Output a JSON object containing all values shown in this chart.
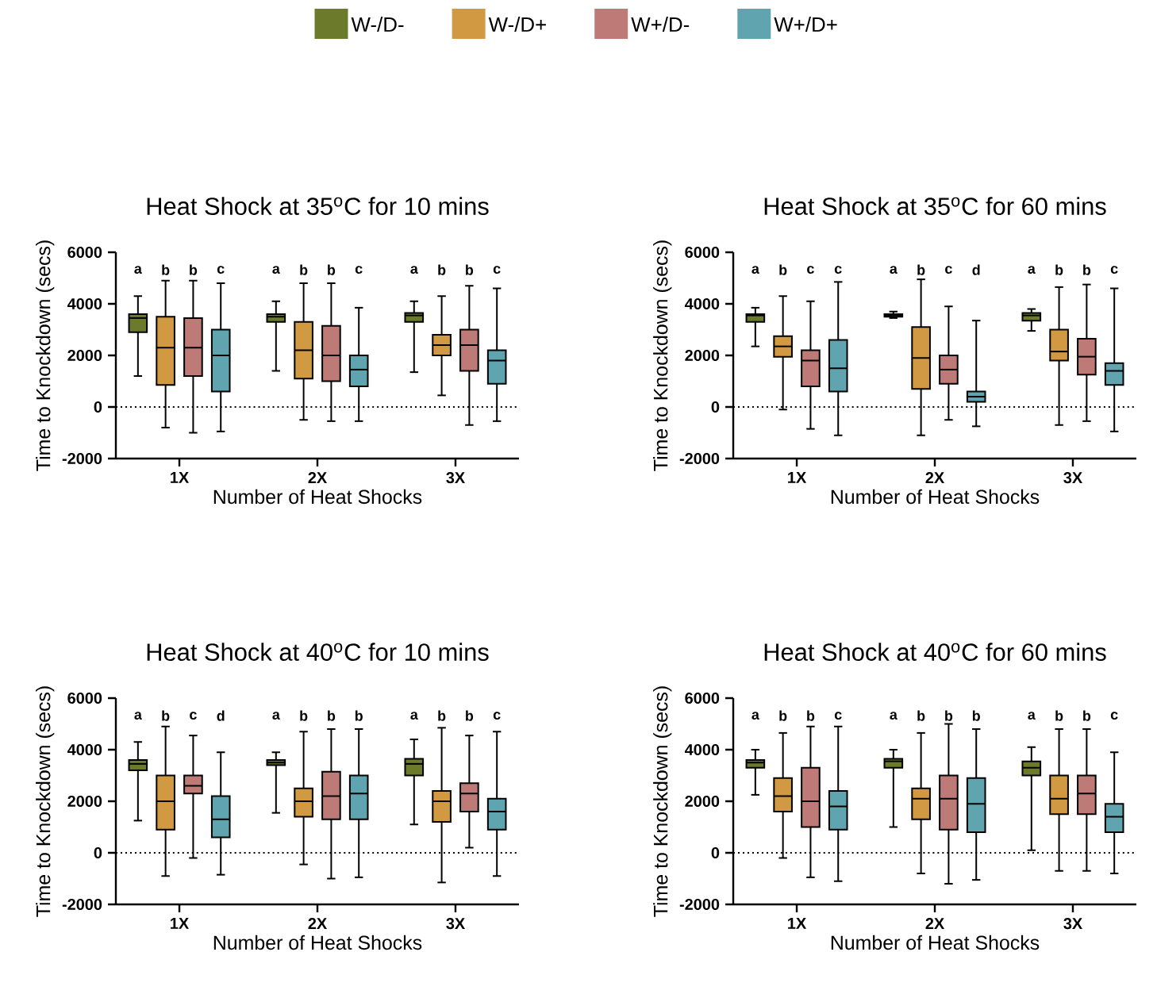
{
  "chart_data": [
    {
      "type": "box",
      "title": "Heat Shock at 35$^{o}$C for 10 mins",
      "xlabel": "Number of Heat Shocks",
      "ylabel": "Time to Knockdown (secs)",
      "categories": [
        "1X",
        "2X",
        "3X"
      ],
      "ylim": [
        -2000,
        6000
      ],
      "yticks": [
        -2000,
        0,
        2000,
        4000,
        6000
      ],
      "legend": "top",
      "series": [
        {
          "name": "W-/D-",
          "color": "#6b7a2b",
          "boxes": [
            {
              "low": 1200,
              "q1": 2900,
              "median": 3450,
              "q3": 3600,
              "high": 4300
            },
            {
              "low": 1400,
              "q1": 3300,
              "median": 3500,
              "q3": 3600,
              "high": 4100
            },
            {
              "low": 1350,
              "q1": 3300,
              "median": 3550,
              "q3": 3650,
              "high": 4100
            }
          ]
        },
        {
          "name": "W-/D+",
          "color": "#d19a42",
          "boxes": [
            {
              "low": -800,
              "q1": 850,
              "median": 2300,
              "q3": 3500,
              "high": 4900
            },
            {
              "low": -500,
              "q1": 1100,
              "median": 2200,
              "q3": 3300,
              "high": 4800
            },
            {
              "low": 450,
              "q1": 2000,
              "median": 2400,
              "q3": 2800,
              "high": 4300
            }
          ]
        },
        {
          "name": "W+/D-",
          "color": "#bd7a77",
          "boxes": [
            {
              "low": -1000,
              "q1": 1200,
              "median": 2300,
              "q3": 3450,
              "high": 4900
            },
            {
              "low": -550,
              "q1": 1000,
              "median": 2000,
              "q3": 3150,
              "high": 4800
            },
            {
              "low": -700,
              "q1": 1400,
              "median": 2400,
              "q3": 3000,
              "high": 4700
            }
          ]
        },
        {
          "name": "W+/D+",
          "color": "#5fa4ae",
          "boxes": [
            {
              "low": -950,
              "q1": 600,
              "median": 2000,
              "q3": 3000,
              "high": 4800
            },
            {
              "low": -550,
              "q1": 800,
              "median": 1450,
              "q3": 2000,
              "high": 3850
            },
            {
              "low": -550,
              "q1": 900,
              "median": 1800,
              "q3": 2200,
              "high": 4600
            }
          ]
        }
      ],
      "ref_lines": [
        {
          "axis": "y",
          "value": 0,
          "line_style": "dotted"
        }
      ],
      "annotations": [
        "a",
        "b",
        "b",
        "c",
        "a",
        "b",
        "b",
        "c",
        "a",
        "b",
        "b",
        "c"
      ]
    },
    {
      "type": "box",
      "title": "Heat Shock at 35$^{o}$C for 60 mins",
      "xlabel": "Number of Heat Shocks",
      "ylabel": "Time to Knockdown (secs)",
      "categories": [
        "1X",
        "2X",
        "3X"
      ],
      "ylim": [
        -2000,
        6000
      ],
      "yticks": [
        -2000,
        0,
        2000,
        4000,
        6000
      ],
      "series": [
        {
          "color": "#6b7a2b",
          "boxes": [
            {
              "low": 2350,
              "q1": 3300,
              "median": 3550,
              "q3": 3600,
              "high": 3850
            },
            {
              "low": 3450,
              "q1": 3500,
              "median": 3550,
              "q3": 3600,
              "high": 3700
            },
            {
              "low": 2950,
              "q1": 3350,
              "median": 3550,
              "q3": 3650,
              "high": 3800
            }
          ]
        },
        {
          "color": "#d19a42",
          "boxes": [
            {
              "low": -100,
              "q1": 1950,
              "median": 2350,
              "q3": 2750,
              "high": 4300
            },
            {
              "low": -1100,
              "q1": 700,
              "median": 1900,
              "q3": 3100,
              "high": 4950
            },
            {
              "low": -700,
              "q1": 1800,
              "median": 2150,
              "q3": 3000,
              "high": 4650
            }
          ]
        },
        {
          "color": "#bd7a77",
          "boxes": [
            {
              "low": -850,
              "q1": 800,
              "median": 1800,
              "q3": 2200,
              "high": 4100
            },
            {
              "low": -500,
              "q1": 900,
              "median": 1450,
              "q3": 2000,
              "high": 3900
            },
            {
              "low": -550,
              "q1": 1250,
              "median": 1950,
              "q3": 2650,
              "high": 4750
            }
          ]
        },
        {
          "color": "#5fa4ae",
          "boxes": [
            {
              "low": -1100,
              "q1": 600,
              "median": 1500,
              "q3": 2600,
              "high": 4850
            },
            {
              "low": -750,
              "q1": 200,
              "median": 400,
              "q3": 600,
              "high": 3350
            },
            {
              "low": -950,
              "q1": 850,
              "median": 1400,
              "q3": 1700,
              "high": 4600
            }
          ]
        }
      ],
      "ref_lines": [
        {
          "axis": "y",
          "value": 0,
          "line_style": "dotted"
        }
      ],
      "annotations": [
        "a",
        "b",
        "c",
        "c",
        "a",
        "b",
        "c",
        "d",
        "a",
        "b",
        "b",
        "c"
      ]
    },
    {
      "type": "box",
      "title": "Heat Shock at 40$^{o}$C for 10 mins",
      "xlabel": "Number of Heat Shocks",
      "ylabel": "Time to Knockdown (secs)",
      "categories": [
        "1X",
        "2X",
        "3X"
      ],
      "ylim": [
        -2000,
        6000
      ],
      "yticks": [
        -2000,
        0,
        2000,
        4000,
        6000
      ],
      "series": [
        {
          "color": "#6b7a2b",
          "boxes": [
            {
              "low": 1250,
              "q1": 3200,
              "median": 3450,
              "q3": 3600,
              "high": 4300
            },
            {
              "low": 1550,
              "q1": 3400,
              "median": 3500,
              "q3": 3600,
              "high": 3900
            },
            {
              "low": 1100,
              "q1": 3000,
              "median": 3450,
              "q3": 3650,
              "high": 4400
            }
          ]
        },
        {
          "color": "#d19a42",
          "boxes": [
            {
              "low": -900,
              "q1": 900,
              "median": 2000,
              "q3": 3000,
              "high": 4900
            },
            {
              "low": -450,
              "q1": 1400,
              "median": 2000,
              "q3": 2500,
              "high": 4700
            },
            {
              "low": -1150,
              "q1": 1200,
              "median": 2000,
              "q3": 2400,
              "high": 4850
            }
          ]
        },
        {
          "color": "#bd7a77",
          "boxes": [
            {
              "low": -200,
              "q1": 2300,
              "median": 2600,
              "q3": 3000,
              "high": 4550
            },
            {
              "low": -1000,
              "q1": 1300,
              "median": 2200,
              "q3": 3150,
              "high": 4800
            },
            {
              "low": 200,
              "q1": 1600,
              "median": 2300,
              "q3": 2700,
              "high": 4550
            }
          ]
        },
        {
          "color": "#5fa4ae",
          "boxes": [
            {
              "low": -850,
              "q1": 600,
              "median": 1300,
              "q3": 2200,
              "high": 3900
            },
            {
              "low": -950,
              "q1": 1300,
              "median": 2300,
              "q3": 3000,
              "high": 4800
            },
            {
              "low": -900,
              "q1": 900,
              "median": 1600,
              "q3": 2100,
              "high": 4700
            }
          ]
        }
      ],
      "ref_lines": [
        {
          "axis": "y",
          "value": 0,
          "line_style": "dotted"
        }
      ],
      "annotations": [
        "a",
        "b",
        "c",
        "d",
        "a",
        "b",
        "b",
        "b",
        "a",
        "b",
        "b",
        "c"
      ]
    },
    {
      "type": "box",
      "title": "Heat Shock at 40$^{o}$C for 60 mins",
      "xlabel": "Number of Heat Shocks",
      "ylabel": "Time to Knockdown (secs)",
      "categories": [
        "1X",
        "2X",
        "3X"
      ],
      "ylim": [
        -2000,
        6000
      ],
      "yticks": [
        -2000,
        0,
        2000,
        4000,
        6000
      ],
      "series": [
        {
          "color": "#6b7a2b",
          "boxes": [
            {
              "low": 2250,
              "q1": 3300,
              "median": 3500,
              "q3": 3600,
              "high": 4000
            },
            {
              "low": 1000,
              "q1": 3300,
              "median": 3550,
              "q3": 3650,
              "high": 4000
            },
            {
              "low": 100,
              "q1": 3000,
              "median": 3300,
              "q3": 3550,
              "high": 4100
            }
          ]
        },
        {
          "color": "#d19a42",
          "boxes": [
            {
              "low": -200,
              "q1": 1600,
              "median": 2200,
              "q3": 2900,
              "high": 4650
            },
            {
              "low": -800,
              "q1": 1300,
              "median": 2100,
              "q3": 2500,
              "high": 4650
            },
            {
              "low": -700,
              "q1": 1500,
              "median": 2100,
              "q3": 3000,
              "high": 4800
            }
          ]
        },
        {
          "color": "#bd7a77",
          "boxes": [
            {
              "low": -950,
              "q1": 1000,
              "median": 2000,
              "q3": 3300,
              "high": 4900
            },
            {
              "low": -1200,
              "q1": 900,
              "median": 2100,
              "q3": 3000,
              "high": 5000
            },
            {
              "low": -700,
              "q1": 1500,
              "median": 2300,
              "q3": 3000,
              "high": 4800
            }
          ]
        },
        {
          "color": "#5fa4ae",
          "boxes": [
            {
              "low": -1100,
              "q1": 900,
              "median": 1800,
              "q3": 2400,
              "high": 4900
            },
            {
              "low": -1050,
              "q1": 800,
              "median": 1900,
              "q3": 2900,
              "high": 4800
            },
            {
              "low": -800,
              "q1": 800,
              "median": 1400,
              "q3": 1900,
              "high": 3900
            }
          ]
        }
      ],
      "ref_lines": [
        {
          "axis": "y",
          "value": 0,
          "line_style": "dotted"
        }
      ],
      "annotations": [
        "a",
        "b",
        "b",
        "c",
        "a",
        "b",
        "b",
        "b",
        "a",
        "b",
        "b",
        "c"
      ]
    }
  ]
}
